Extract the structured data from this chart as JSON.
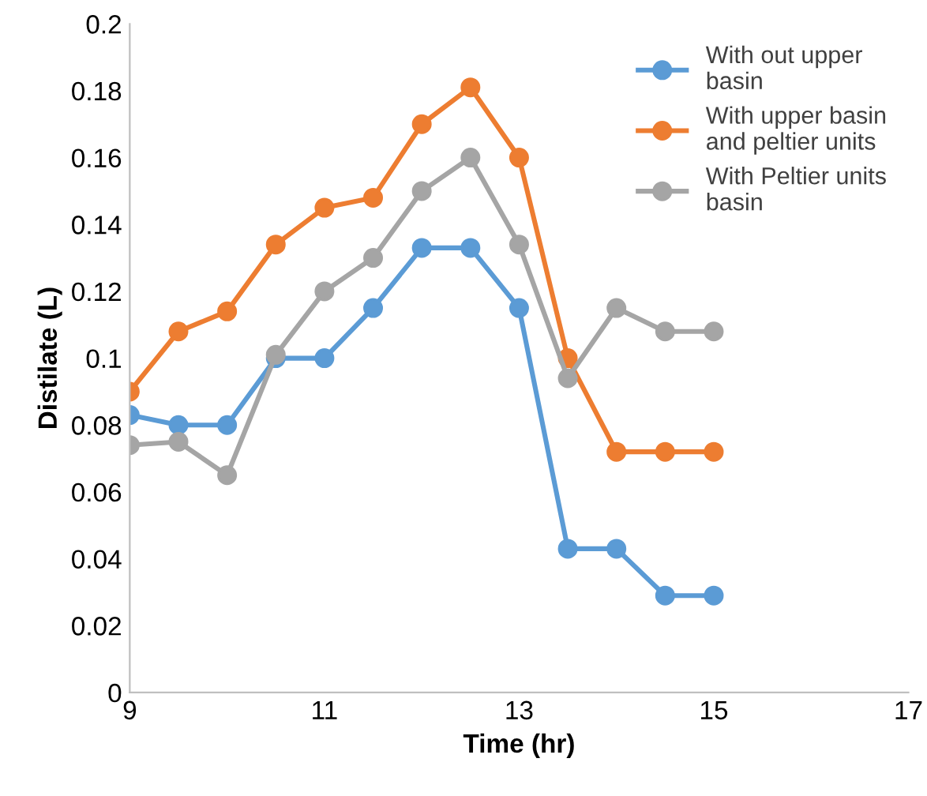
{
  "chart_data": {
    "type": "line",
    "xlabel": "Time (hr)",
    "ylabel": "Distilate (L)",
    "x": [
      9,
      9.5,
      10,
      10.5,
      11,
      11.5,
      12,
      12.5,
      13,
      13.5,
      14,
      14.5,
      15
    ],
    "series": [
      {
        "name": "With out upper\nbasin",
        "color": "#5b9bd5",
        "values": [
          0.083,
          0.08,
          0.08,
          0.1,
          0.1,
          0.115,
          0.133,
          0.133,
          0.115,
          0.043,
          0.043,
          0.029,
          0.029
        ]
      },
      {
        "name": "With upper basin\nand peltier units",
        "color": "#ed7d31",
        "values": [
          0.09,
          0.108,
          0.114,
          0.134,
          0.145,
          0.148,
          0.17,
          0.181,
          0.16,
          0.1,
          0.072,
          0.072,
          0.072
        ]
      },
      {
        "name": "With Peltier units\nbasin",
        "color": "#a5a5a5",
        "values": [
          0.074,
          0.075,
          0.065,
          0.101,
          0.12,
          0.13,
          0.15,
          0.16,
          0.134,
          0.094,
          0.115,
          0.108,
          0.108
        ]
      }
    ],
    "xlim": [
      9,
      17
    ],
    "xticks": [
      9,
      11,
      13,
      15,
      17
    ],
    "ylim": [
      0,
      0.2
    ],
    "yticks": [
      {
        "value": 0,
        "label": "0"
      },
      0.02,
      0.04,
      0.06,
      0.08,
      {
        "value": 0.1,
        "label": "0.1"
      },
      0.12,
      0.14,
      0.16,
      0.18,
      {
        "value": 0.2,
        "label": "0.2"
      }
    ],
    "grid": false,
    "legend": "top right",
    "marker": "circle",
    "line_style": "solid"
  }
}
